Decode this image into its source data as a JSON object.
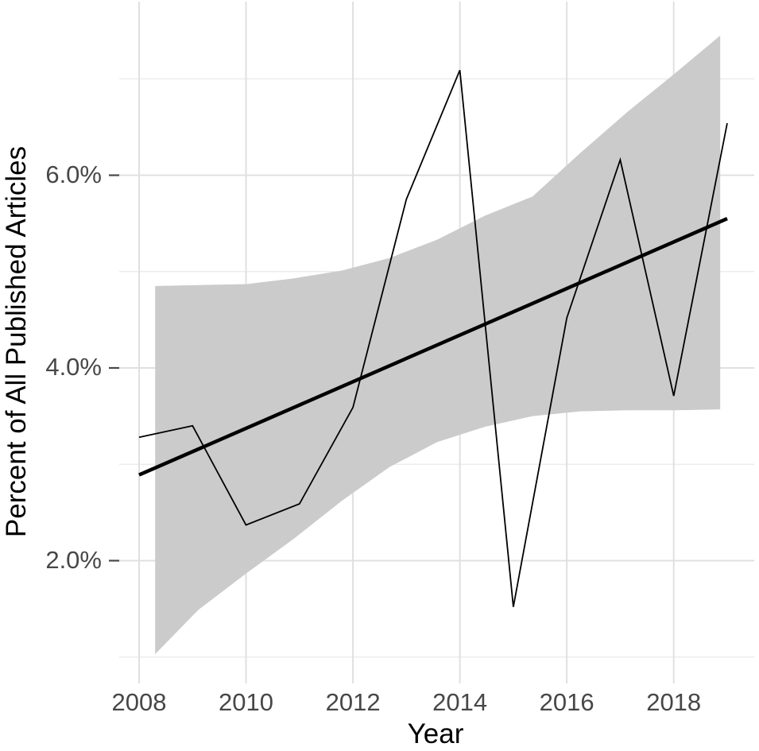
{
  "chart_data": {
    "type": "line",
    "title": "",
    "xlabel": "Year",
    "ylabel": "Percent of All Published Articles",
    "legend": "none",
    "grid": "on",
    "background": "#ffffff",
    "x_domain": [
      2007.63,
      2019.52
    ],
    "y_domain": [
      0.73,
      7.79
    ],
    "x_ticks": {
      "values": [
        2008,
        2010,
        2012,
        2014,
        2016,
        2018
      ],
      "labels": [
        "2008",
        "2010",
        "2012",
        "2014",
        "2016",
        "2018"
      ]
    },
    "y_ticks": {
      "values": [
        2,
        4,
        6
      ],
      "labels": [
        "2.0%",
        "4.0%",
        "6.0%"
      ]
    },
    "y_minor_ticks": [
      1,
      3,
      5,
      7
    ],
    "series": [
      {
        "name": "observed_percent",
        "style": "thin",
        "x": [
          2008,
          2009,
          2010,
          2011,
          2012,
          2013,
          2014,
          2015,
          2016,
          2017,
          2018,
          2019
        ],
        "y": [
          3.28,
          3.4,
          2.37,
          2.59,
          3.59,
          5.75,
          7.09,
          1.52,
          4.52,
          6.16,
          3.71,
          6.54
        ]
      },
      {
        "name": "linear_trend",
        "style": "thick",
        "x": [
          2008,
          2019
        ],
        "y": [
          2.89,
          5.55
        ]
      }
    ],
    "confidence_band": {
      "x": [
        2008.3,
        2009.11,
        2010.01,
        2010.9,
        2011.79,
        2012.68,
        2013.57,
        2014.47,
        2015.36,
        2016.25,
        2017.14,
        2018.03,
        2018.87
      ],
      "upper": [
        4.85,
        4.86,
        4.87,
        4.93,
        5.01,
        5.14,
        5.33,
        5.58,
        5.78,
        6.23,
        6.66,
        7.06,
        7.45
      ],
      "lower": [
        1.03,
        1.49,
        1.87,
        2.23,
        2.62,
        2.97,
        3.23,
        3.39,
        3.5,
        3.55,
        3.56,
        3.56,
        3.57
      ]
    },
    "colors": {
      "band": "#cbcbcb",
      "line": "#000000",
      "trend": "#000000",
      "grid_major": "#e0e0e0",
      "grid_minor": "#ececec",
      "tick_label": "#474747",
      "axis_title": "#000000",
      "tick_mark": "#474747"
    }
  }
}
